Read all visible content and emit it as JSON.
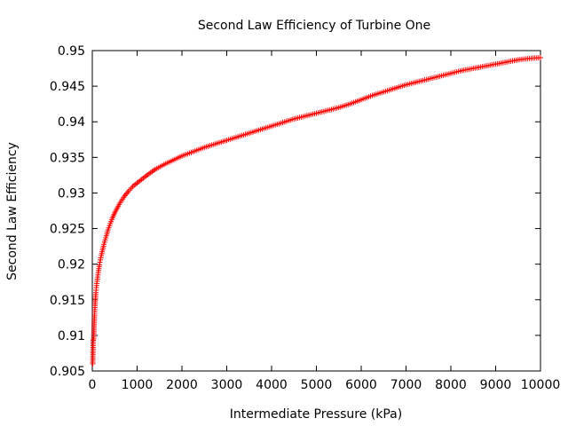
{
  "chart_data": {
    "type": "scatter",
    "title": "Second Law Efficiency of Turbine One",
    "xlabel": "Intermediate Pressure (kPa)",
    "ylabel": "Second Law Efficiency",
    "xlim": [
      0,
      10000
    ],
    "ylim": [
      0.905,
      0.95
    ],
    "xticks": [
      {
        "value": 0,
        "label": "0"
      },
      {
        "value": 1000,
        "label": "1000"
      },
      {
        "value": 2000,
        "label": "2000"
      },
      {
        "value": 3000,
        "label": "3000"
      },
      {
        "value": 4000,
        "label": "4000"
      },
      {
        "value": 5000,
        "label": "5000"
      },
      {
        "value": 6000,
        "label": "6000"
      },
      {
        "value": 7000,
        "label": "7000"
      },
      {
        "value": 8000,
        "label": "8000"
      },
      {
        "value": 9000,
        "label": "9000"
      },
      {
        "value": 10000,
        "label": "10000"
      }
    ],
    "yticks": [
      {
        "value": 0.905,
        "label": "0.905"
      },
      {
        "value": 0.91,
        "label": "0.91"
      },
      {
        "value": 0.915,
        "label": "0.915"
      },
      {
        "value": 0.92,
        "label": "0.92"
      },
      {
        "value": 0.925,
        "label": "0.925"
      },
      {
        "value": 0.93,
        "label": "0.93"
      },
      {
        "value": 0.935,
        "label": "0.935"
      },
      {
        "value": 0.94,
        "label": "0.94"
      },
      {
        "value": 0.945,
        "label": "0.945"
      },
      {
        "value": 0.95,
        "label": "0.95"
      }
    ],
    "grid": false,
    "legend": "none",
    "marker": "plus",
    "series": [
      {
        "color": "#ff0000",
        "x": [
          10,
          20,
          30,
          40,
          50,
          60,
          70,
          80,
          90,
          100,
          120,
          140,
          160,
          180,
          200,
          230,
          260,
          300,
          350,
          400,
          450,
          500,
          600,
          700,
          800,
          900,
          1000,
          1200,
          1400,
          1600,
          1800,
          2000,
          2250,
          2500,
          2750,
          3000,
          3250,
          3500,
          3750,
          4000,
          4250,
          4500,
          4750,
          5000,
          5250,
          5500,
          5750,
          6000,
          6250,
          6500,
          6750,
          7000,
          7250,
          7500,
          7750,
          8000,
          8250,
          8500,
          8750,
          9000,
          9250,
          9500,
          9750,
          10000
        ],
        "y": [
          0.906,
          0.9093,
          0.9095,
          0.9115,
          0.913,
          0.9142,
          0.9152,
          0.916,
          0.9167,
          0.9173,
          0.9182,
          0.9191,
          0.9199,
          0.9206,
          0.9212,
          0.922,
          0.9228,
          0.9237,
          0.9248,
          0.9257,
          0.9265,
          0.9272,
          0.9284,
          0.9294,
          0.9302,
          0.9309,
          0.9314,
          0.9324,
          0.9333,
          0.934,
          0.9346,
          0.9352,
          0.9358,
          0.9364,
          0.9369,
          0.9374,
          0.9379,
          0.9384,
          0.9389,
          0.9394,
          0.9399,
          0.9404,
          0.9408,
          0.9412,
          0.9416,
          0.942,
          0.9425,
          0.9431,
          0.9437,
          0.9442,
          0.9447,
          0.9452,
          0.9456,
          0.946,
          0.9464,
          0.9468,
          0.9472,
          0.9475,
          0.9478,
          0.9481,
          0.9484,
          0.9487,
          0.9489,
          0.949
        ]
      }
    ]
  }
}
